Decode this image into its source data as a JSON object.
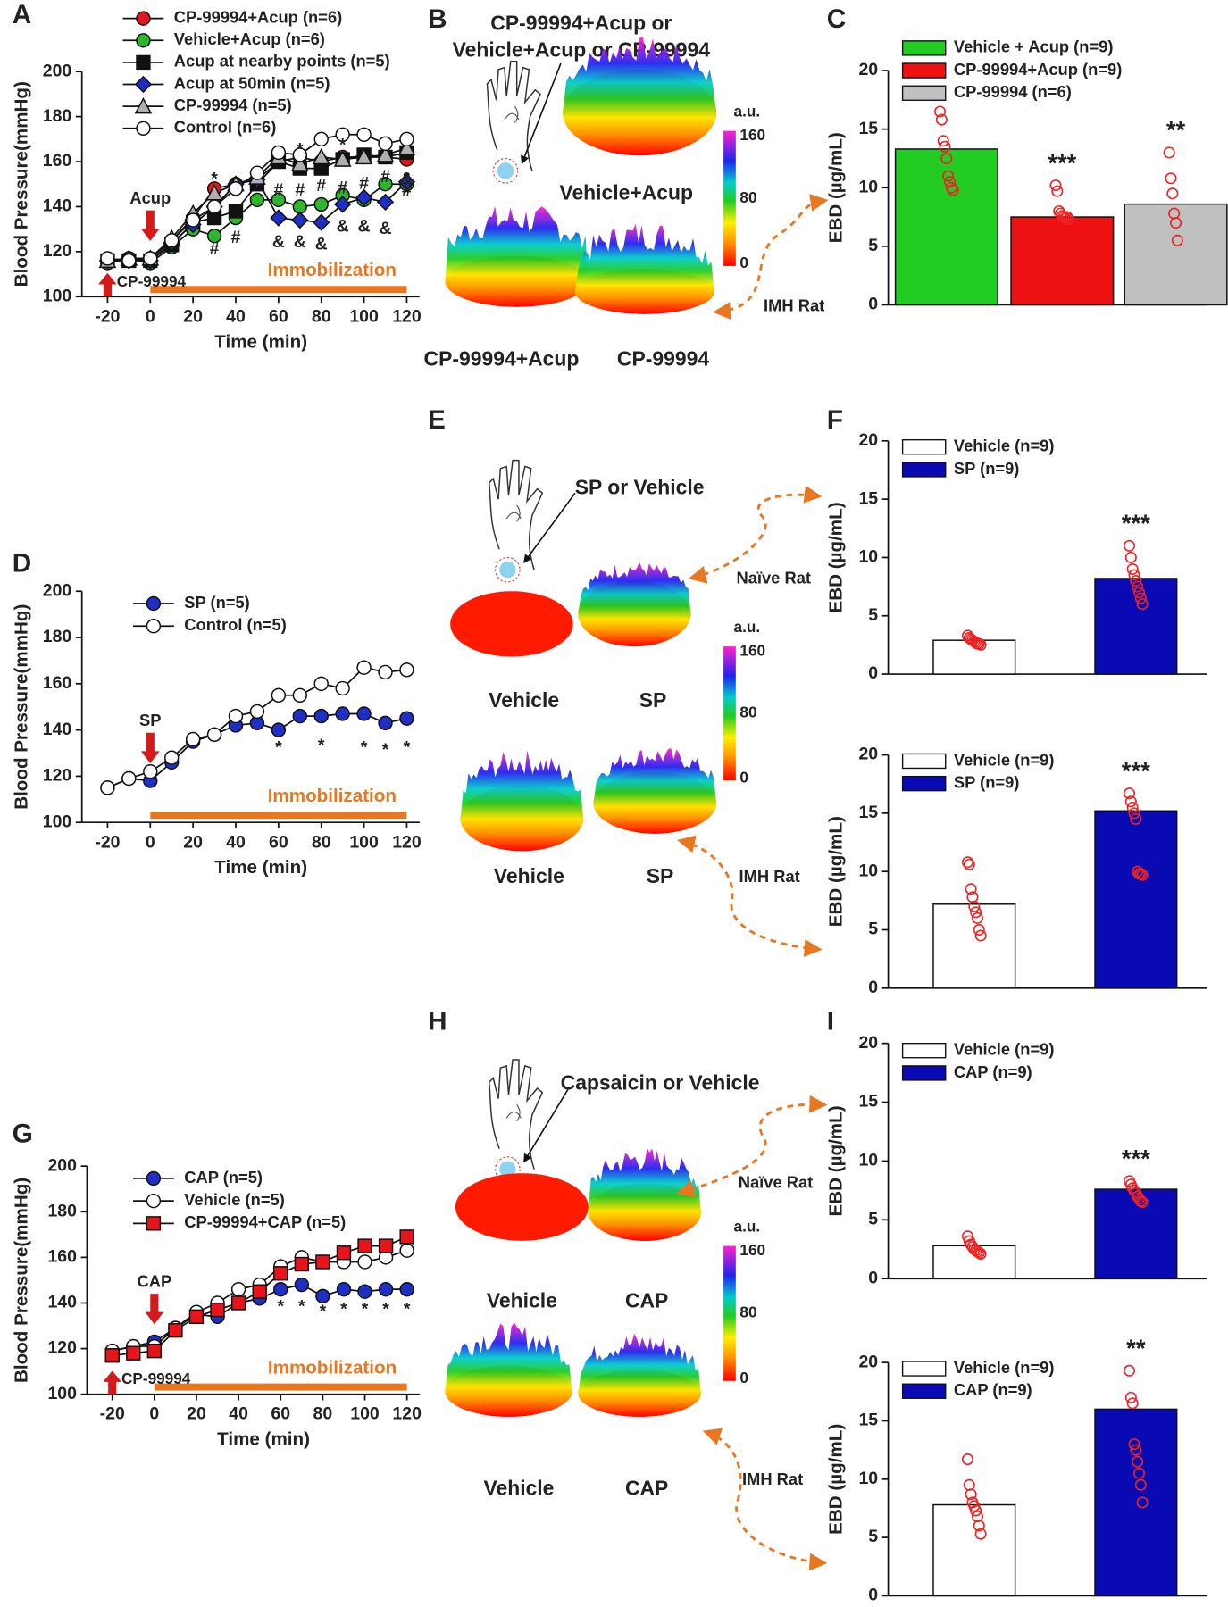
{
  "chart_data": [
    {
      "panel": "A",
      "type": "line",
      "xlabel": "Time (min)",
      "ylabel": "Blood Pressure(mmHg)",
      "x": [
        -20,
        -10,
        0,
        10,
        20,
        30,
        40,
        50,
        60,
        70,
        80,
        90,
        100,
        110,
        120
      ],
      "xlim": [
        -32,
        126
      ],
      "xticks": [
        -20,
        0,
        20,
        40,
        60,
        80,
        100,
        120
      ],
      "ylim": [
        100,
        200
      ],
      "yticks": [
        100,
        120,
        140,
        160,
        180,
        200
      ],
      "series": [
        {
          "name": "CP-99994+Acup (n=6)",
          "color": "#e8141b",
          "marker": "circle",
          "values": [
            116,
            117,
            117,
            125,
            135,
            148,
            150,
            152,
            160,
            162,
            160,
            162,
            162,
            162,
            161
          ]
        },
        {
          "name": "Vehicle+Acup (n=6)",
          "color": "#2fb52f",
          "marker": "circle",
          "values": [
            115,
            117,
            115,
            122,
            130,
            127,
            135,
            143,
            143,
            140,
            141,
            145,
            143,
            150,
            150
          ]
        },
        {
          "name": "Acup at nearby points (n=5)",
          "color": "#111111",
          "marker": "square",
          "values": [
            116,
            116,
            116,
            123,
            133,
            135,
            138,
            150,
            160,
            157,
            157,
            161,
            163,
            162,
            164
          ]
        },
        {
          "name": "Acup at 50min (n=5)",
          "color": "#1f2fc4",
          "marker": "diamond",
          "values": [
            116,
            116,
            116,
            124,
            132,
            140,
            150,
            152,
            135,
            134,
            133,
            141,
            144,
            142,
            151
          ]
        },
        {
          "name": "CP-99994 (n=5)",
          "color": "#b0b0b0",
          "marker": "triangle",
          "values": [
            116,
            117,
            117,
            126,
            137,
            146,
            150,
            153,
            162,
            159,
            162,
            161,
            162,
            163,
            166
          ]
        },
        {
          "name": "Control (n=6)",
          "color": "#ffffff",
          "marker": "circle",
          "values": [
            117,
            116,
            117,
            125,
            134,
            140,
            148,
            155,
            164,
            163,
            170,
            172,
            172,
            168,
            170
          ]
        }
      ],
      "treatments": [
        {
          "text": "Acup",
          "x": 0
        },
        {
          "text": "CP-99994",
          "x": -20
        }
      ],
      "period": {
        "text": "Immobilization",
        "from": 0,
        "to": 120
      },
      "annotations": [
        {
          "text": "*",
          "x": 30,
          "y": 152
        },
        {
          "text": "*",
          "x": 70,
          "y": 165
        },
        {
          "text": "*",
          "x": 90,
          "y": 167
        },
        {
          "text": "#",
          "x": 30,
          "y": 121
        },
        {
          "text": "#",
          "x": 40,
          "y": 126
        },
        {
          "text": "#",
          "x": 60,
          "y": 147
        },
        {
          "text": "#",
          "x": 70,
          "y": 147
        },
        {
          "text": "#",
          "x": 80,
          "y": 149
        },
        {
          "text": "#",
          "x": 90,
          "y": 148
        },
        {
          "text": "#",
          "x": 100,
          "y": 150
        },
        {
          "text": "#",
          "x": 110,
          "y": 153
        },
        {
          "text": "#",
          "x": 120,
          "y": 147
        },
        {
          "text": "&",
          "x": 60,
          "y": 124
        },
        {
          "text": "&",
          "x": 70,
          "y": 124
        },
        {
          "text": "&",
          "x": 80,
          "y": 123
        },
        {
          "text": "&",
          "x": 90,
          "y": 131
        },
        {
          "text": "&",
          "x": 100,
          "y": 131
        },
        {
          "text": "&",
          "x": 110,
          "y": 130
        },
        {
          "text": "&",
          "x": 120,
          "y": 152
        }
      ]
    },
    {
      "panel": "C",
      "type": "bar",
      "ylabel": "EBD (µg/mL)",
      "ylim": [
        0,
        20
      ],
      "yticks": [
        0,
        5,
        10,
        15,
        20
      ],
      "series": [
        {
          "name": "Vehicle + Acup (n=9)",
          "color": "#22cc22",
          "values": [
            13.3
          ],
          "points": [
            16.5,
            15.8,
            14,
            13.5,
            12.5,
            11,
            10.5,
            10,
            9.8
          ]
        },
        {
          "name": "CP-99994+Acup (n=9)",
          "color": "#ee1111",
          "values": [
            7.5
          ],
          "points": [
            10.2,
            9.7,
            8,
            7.8,
            7.6,
            7.5,
            7.4,
            7.5,
            7.3
          ],
          "significance": "***"
        },
        {
          "name": "CP-99994 (n=6)",
          "color": "#c0c0c0",
          "values": [
            8.6
          ],
          "points": [
            13,
            10.8,
            9.5,
            7.8,
            7,
            5.5
          ],
          "significance": "**"
        }
      ]
    },
    {
      "panel": "D",
      "type": "line",
      "xlabel": "Time (min)",
      "ylabel": "Blood Pressure(mmHg)",
      "x": [
        -20,
        -10,
        0,
        10,
        20,
        30,
        40,
        50,
        60,
        70,
        80,
        90,
        100,
        110,
        120
      ],
      "xlim": [
        -32,
        126
      ],
      "xticks": [
        -20,
        0,
        20,
        40,
        60,
        80,
        100,
        120
      ],
      "ylim": [
        100,
        200
      ],
      "yticks": [
        100,
        120,
        140,
        160,
        180,
        200
      ],
      "series": [
        {
          "name": "SP (n=5)",
          "color": "#1f2fc4",
          "marker": "circle",
          "values": [
            115,
            119,
            118,
            126,
            135,
            138,
            142,
            143,
            140,
            146,
            146,
            147,
            147,
            143,
            145
          ]
        },
        {
          "name": "Control (n=5)",
          "color": "#ffffff",
          "marker": "circle",
          "values": [
            115,
            119,
            122,
            128,
            136,
            138,
            146,
            148,
            155,
            155,
            160,
            158,
            167,
            165,
            166
          ]
        }
      ],
      "treatments": [
        {
          "text": "SP",
          "x": 0
        }
      ],
      "period": {
        "text": "Immobilization",
        "from": 0,
        "to": 120
      },
      "annotations": [
        {
          "text": "*",
          "x": 60,
          "y": 132
        },
        {
          "text": "*",
          "x": 80,
          "y": 133
        },
        {
          "text": "*",
          "x": 100,
          "y": 132
        },
        {
          "text": "*",
          "x": 110,
          "y": 131
        },
        {
          "text": "*",
          "x": 120,
          "y": 132
        }
      ]
    },
    {
      "panel": "F",
      "type": "bar",
      "ylabel": "EBD (µg/mL)",
      "ylim": [
        0,
        20
      ],
      "yticks": [
        0,
        5,
        10,
        15,
        20
      ],
      "series": [
        {
          "name": "Vehicle (n=9)",
          "color": "#ffffff",
          "values": [
            2.9
          ],
          "points": [
            3.3,
            3.1,
            3,
            2.9,
            2.8,
            2.7,
            2.6,
            2.6,
            2.5
          ]
        },
        {
          "name": "SP (n=9)",
          "color": "#0a0ab4",
          "values": [
            8.2
          ],
          "points": [
            11,
            10,
            9,
            8.5,
            8,
            7.5,
            7,
            6.5,
            6
          ],
          "significance": "***"
        }
      ]
    },
    {
      "type": "bar",
      "ylabel": "EBD (µg/mL)",
      "ylim": [
        0,
        20
      ],
      "yticks": [
        0,
        5,
        10,
        15,
        20
      ],
      "series": [
        {
          "name": "Vehicle (n=9)",
          "color": "#ffffff",
          "values": [
            7.2
          ],
          "points": [
            10.8,
            10.6,
            8.5,
            7.8,
            7,
            6.5,
            6,
            5,
            4.5
          ]
        },
        {
          "name": "SP (n=9)",
          "color": "#0a0ab4",
          "values": [
            15.2
          ],
          "points": [
            16.7,
            16,
            15.5,
            15,
            14.5,
            10,
            9.8,
            9.8,
            9.7
          ],
          "significance": "***"
        }
      ]
    },
    {
      "panel": "G",
      "type": "line",
      "xlabel": "Time (min)",
      "ylabel": "Blood Pressure(mmHg)",
      "x": [
        -20,
        -10,
        0,
        10,
        20,
        30,
        40,
        50,
        60,
        70,
        80,
        90,
        100,
        110,
        120
      ],
      "xlim": [
        -32,
        126
      ],
      "xticks": [
        -20,
        0,
        20,
        40,
        60,
        80,
        100,
        120
      ],
      "ylim": [
        100,
        200
      ],
      "yticks": [
        100,
        120,
        140,
        160,
        180,
        200
      ],
      "series": [
        {
          "name": "CAP (n=5)",
          "color": "#1f2fc4",
          "marker": "circle",
          "values": [
            119,
            121,
            123,
            129,
            135,
            134,
            140,
            142,
            146,
            148,
            143,
            146,
            145,
            146,
            146
          ]
        },
        {
          "name": "Vehicle (n=5)",
          "color": "#ffffff",
          "marker": "circle",
          "values": [
            119,
            121,
            121,
            129,
            136,
            140,
            146,
            148,
            156,
            160,
            158,
            158,
            158,
            160,
            163
          ]
        },
        {
          "name": "CP-99994+CAP (n=5)",
          "color": "#e8141b",
          "marker": "square",
          "values": [
            117,
            118,
            119,
            128,
            134,
            137,
            140,
            145,
            153,
            157,
            158,
            162,
            165,
            165,
            169
          ]
        }
      ],
      "treatments": [
        {
          "text": "CAP",
          "x": 0
        },
        {
          "text": "CP-99994",
          "x": -20
        }
      ],
      "period": {
        "text": "Immobilization",
        "from": 0,
        "to": 120
      },
      "annotations": [
        {
          "text": "*",
          "x": 60,
          "y": 138
        },
        {
          "text": "*",
          "x": 70,
          "y": 138
        },
        {
          "text": "*",
          "x": 80,
          "y": 136
        },
        {
          "text": "*",
          "x": 90,
          "y": 137
        },
        {
          "text": "*",
          "x": 100,
          "y": 137
        },
        {
          "text": "*",
          "x": 110,
          "y": 137
        },
        {
          "text": "*",
          "x": 120,
          "y": 137
        }
      ]
    },
    {
      "panel": "I",
      "type": "bar",
      "ylabel": "EBD (µg/mL)",
      "ylim": [
        0,
        20
      ],
      "yticks": [
        0,
        5,
        10,
        15,
        20
      ],
      "series": [
        {
          "name": "Vehicle (n=9)",
          "color": "#ffffff",
          "values": [
            2.8
          ],
          "points": [
            3.6,
            3.2,
            2.9,
            2.7,
            2.5,
            2.4,
            2.3,
            2.2,
            2.1
          ]
        },
        {
          "name": "CAP (n=9)",
          "color": "#0a0ab4",
          "values": [
            7.6
          ],
          "points": [
            8.3,
            8,
            7.7,
            7.5,
            7.3,
            7,
            6.8,
            6.6,
            6.5
          ],
          "significance": "***"
        }
      ]
    },
    {
      "type": "bar",
      "ylabel": "EBD (µg/mL)",
      "ylim": [
        0,
        20
      ],
      "yticks": [
        0,
        5,
        10,
        15,
        20
      ],
      "series": [
        {
          "name": "Vehicle (n=9)",
          "color": "#ffffff",
          "values": [
            7.8
          ],
          "points": [
            11.7,
            9.5,
            8.7,
            8,
            7.7,
            7.3,
            6.8,
            6,
            5.3
          ]
        },
        {
          "name": "CAP (n=9)",
          "color": "#0a0ab4",
          "values": [
            16.0
          ],
          "points": [
            19.3,
            17,
            16.5,
            13,
            12.5,
            11.5,
            10.5,
            9.5,
            8
          ],
          "significance": "**"
        }
      ]
    }
  ],
  "diagrams": [
    {
      "panel": "B",
      "title": [
        "CP-99994+Acup or",
        "Vehicle+Acup or CP-99994"
      ],
      "unit": "a.u.",
      "scale": [
        "160",
        "80",
        "0"
      ],
      "labels": [
        "Vehicle+Acup",
        "CP-99994+Acup",
        "CP-99994"
      ],
      "rats": [
        "IMH Rat"
      ]
    },
    {
      "panel": "E",
      "title": [
        "SP or Vehicle"
      ],
      "unit": "a.u.",
      "scale": [
        "160",
        "80",
        "0"
      ],
      "labels": [
        "Vehicle",
        "SP",
        "Vehicle",
        "SP"
      ],
      "rats": [
        "Naïve Rat",
        "IMH Rat"
      ]
    },
    {
      "panel": "H",
      "title": [
        "Capsaicin or Vehicle"
      ],
      "unit": "a.u.",
      "scale": [
        "160",
        "80",
        "0"
      ],
      "labels": [
        "Vehicle",
        "CAP",
        "Vehicle",
        "CAP"
      ],
      "rats": [
        "Naïve Rat",
        "IMH Rat"
      ]
    }
  ]
}
